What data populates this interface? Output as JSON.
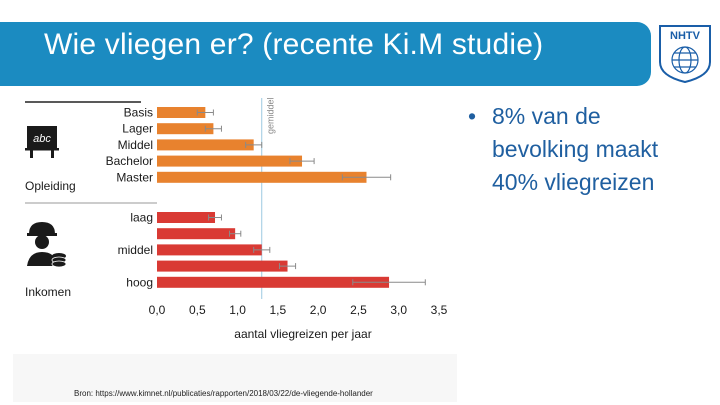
{
  "header": {
    "title": "Wie vliegen er? (recente Ki.M studie)",
    "logo_text": "NHTV",
    "colors": {
      "band": "#1b8bc1",
      "logo": "#1a5ea8"
    }
  },
  "bullet": {
    "symbol": "•",
    "text": "8% van de bevolking maakt 40% vliegreizen"
  },
  "source": "Bron: https://www.kimnet.nl/publicaties/rapporten/2018/03/22/de-vliegende-hollander",
  "chart_data": {
    "type": "bar",
    "orientation": "horizontal",
    "xlabel": "aantal vliegreizen per jaar",
    "xlim": [
      0,
      3.5
    ],
    "xticks": [
      "0,0",
      "0,5",
      "1,0",
      "1,5",
      "2,0",
      "2,5",
      "3,0",
      "3,5"
    ],
    "reference_label": "gemiddel",
    "groups": [
      {
        "label": "Opleiding",
        "icon": "school-board-icon",
        "badge": "abc",
        "color": "#e8822e",
        "categories": [
          "Basis",
          "Lager",
          "Middel",
          "Bachelor",
          "Master"
        ],
        "values": [
          0.6,
          0.7,
          1.2,
          1.8,
          2.6
        ],
        "error": [
          0.1,
          0.1,
          0.1,
          0.15,
          0.3
        ]
      },
      {
        "label": "Inkomen",
        "icon": "worker-money-icon",
        "badge": "",
        "color": "#d93a34",
        "categories": [
          "laag",
          "",
          "middel",
          "",
          "hoog"
        ],
        "values": [
          0.72,
          0.97,
          1.3,
          1.62,
          2.88
        ],
        "error": [
          0.08,
          0.07,
          0.1,
          0.1,
          0.45
        ]
      }
    ],
    "grid": false,
    "legend": "none"
  }
}
